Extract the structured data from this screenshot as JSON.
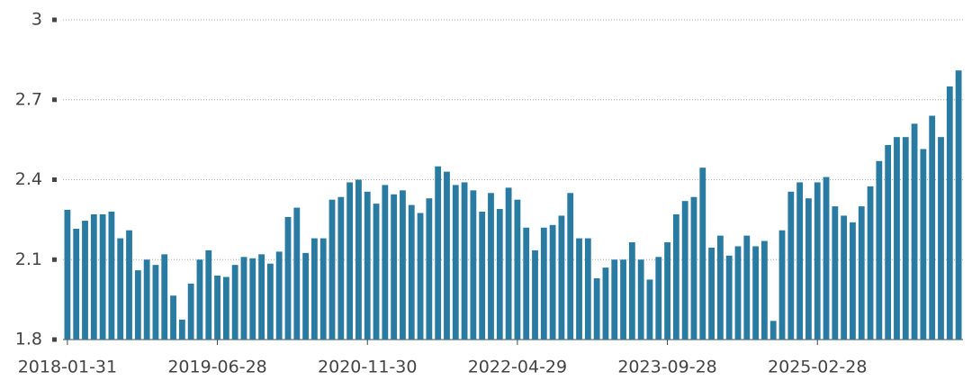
{
  "chart_data": {
    "type": "bar",
    "color": "#2a7ba2",
    "grid": true,
    "ylim": [
      1.8,
      3
    ],
    "yticks": [
      3,
      2.7,
      2.4,
      2.1,
      1.8
    ],
    "categories": [
      "2018-01-31",
      null,
      null,
      null,
      null,
      null,
      null,
      null,
      null,
      null,
      null,
      null,
      null,
      null,
      null,
      null,
      null,
      "2019-06-28",
      null,
      null,
      null,
      null,
      null,
      null,
      null,
      null,
      null,
      null,
      null,
      null,
      null,
      null,
      null,
      null,
      "2020-11-30",
      null,
      null,
      null,
      null,
      null,
      null,
      null,
      null,
      null,
      null,
      null,
      null,
      null,
      null,
      null,
      null,
      "2022-04-29",
      null,
      null,
      null,
      null,
      null,
      null,
      null,
      null,
      null,
      null,
      null,
      null,
      null,
      null,
      null,
      null,
      "2023-09-28",
      null,
      null,
      null,
      null,
      null,
      null,
      null,
      null,
      null,
      null,
      null,
      null,
      null,
      null,
      null,
      null,
      "2025-02-28",
      null,
      null,
      null,
      null,
      null,
      null,
      null,
      null,
      null,
      null,
      null,
      null,
      null,
      null,
      null,
      null
    ],
    "values": [
      2.287,
      2.216,
      2.246,
      2.27,
      2.27,
      2.28,
      2.18,
      2.21,
      2.06,
      2.1,
      2.08,
      2.12,
      1.965,
      1.875,
      2.01,
      2.1,
      2.135,
      2.04,
      2.035,
      2.08,
      2.11,
      2.105,
      2.12,
      2.085,
      2.13,
      2.26,
      2.295,
      2.125,
      2.18,
      2.18,
      2.325,
      2.335,
      2.39,
      2.4,
      2.355,
      2.31,
      2.38,
      2.345,
      2.36,
      2.305,
      2.275,
      2.33,
      2.45,
      2.43,
      2.38,
      2.39,
      2.36,
      2.28,
      2.35,
      2.29,
      2.37,
      2.325,
      2.22,
      2.135,
      2.22,
      2.23,
      2.265,
      2.35,
      2.18,
      2.18,
      2.03,
      2.07,
      2.1,
      2.1,
      2.165,
      2.1,
      2.025,
      2.11,
      2.165,
      2.27,
      2.32,
      2.335,
      2.445,
      2.145,
      2.19,
      2.115,
      2.15,
      2.19,
      2.15,
      2.17,
      1.87,
      2.21,
      2.355,
      2.39,
      2.33,
      2.39,
      2.41,
      2.3,
      2.265,
      2.24,
      2.3,
      2.375,
      2.47,
      2.53,
      2.56,
      2.56,
      2.61,
      2.515,
      2.64,
      2.56,
      2.75,
      2.81
    ]
  }
}
